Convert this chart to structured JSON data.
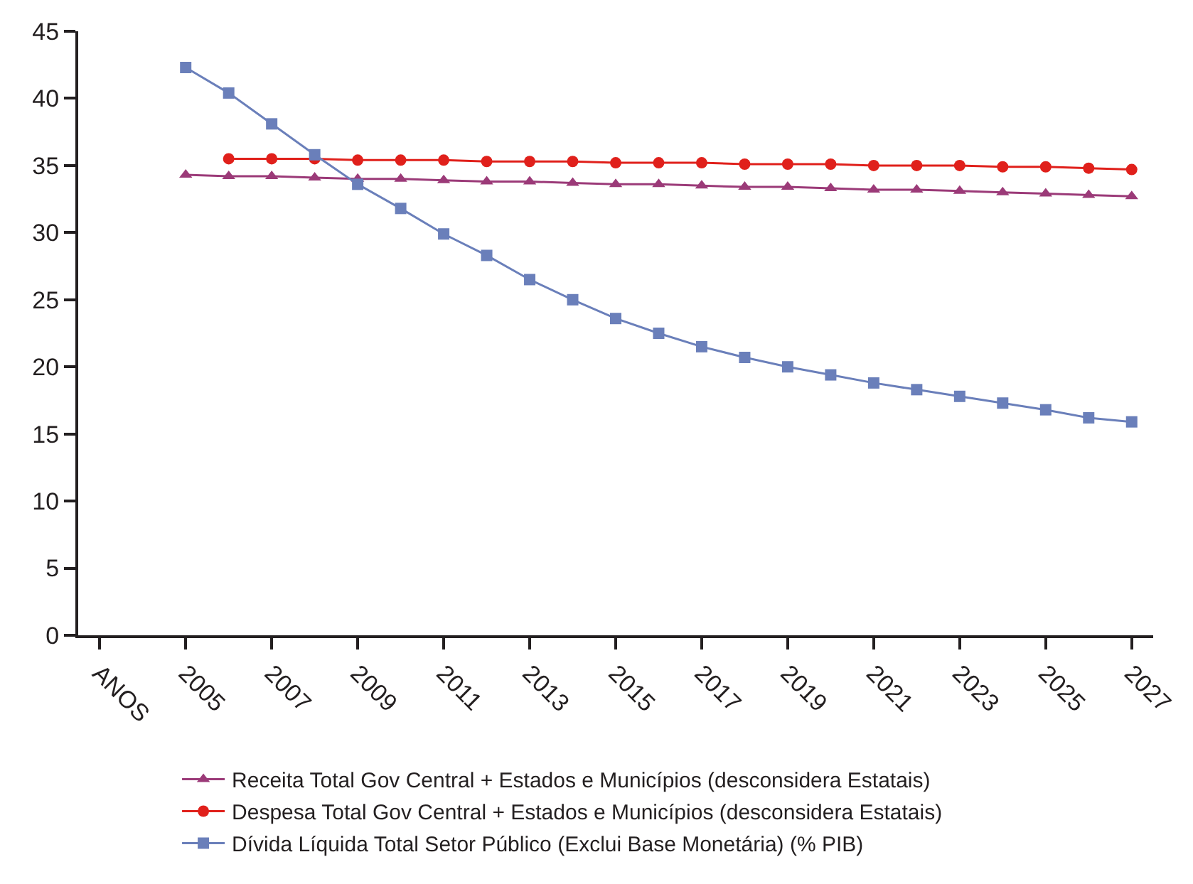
{
  "chart_data": {
    "type": "line",
    "categories": [
      "ANOS",
      null,
      "2005",
      null,
      "2007",
      null,
      "2009",
      null,
      "2011",
      null,
      "2013",
      null,
      "2015",
      null,
      "2017",
      null,
      "2019",
      null,
      "2021",
      null,
      "2023",
      null,
      "2025",
      null,
      "2027"
    ],
    "series": [
      {
        "name": "Receita Total Gov Central + Estados e Municípios (desconsidera Estatais)",
        "color": "#9b3a78",
        "marker": "triangle",
        "values": [
          null,
          null,
          34.3,
          34.2,
          34.2,
          34.1,
          34.0,
          34.0,
          33.9,
          33.8,
          33.8,
          33.7,
          33.6,
          33.6,
          33.5,
          33.4,
          33.4,
          33.3,
          33.2,
          33.2,
          33.1,
          33.0,
          32.9,
          32.8,
          32.7
        ]
      },
      {
        "name": "Despesa Total Gov Central + Estados e Municípios (desconsidera Estatais)",
        "color": "#e0201b",
        "marker": "circle",
        "values": [
          null,
          null,
          null,
          35.5,
          35.5,
          35.5,
          35.4,
          35.4,
          35.4,
          35.3,
          35.3,
          35.3,
          35.2,
          35.2,
          35.2,
          35.1,
          35.1,
          35.1,
          35.0,
          35.0,
          35.0,
          34.9,
          34.9,
          34.8,
          34.7
        ]
      },
      {
        "name": "Dívida Líquida Total Setor Público (Exclui Base Monetária) (% PIB)",
        "color": "#6a7fba",
        "marker": "square",
        "values": [
          null,
          null,
          42.3,
          40.4,
          38.1,
          35.8,
          33.6,
          31.8,
          29.9,
          28.3,
          26.5,
          25.0,
          23.6,
          22.5,
          21.5,
          20.7,
          20.0,
          19.4,
          18.8,
          18.3,
          17.8,
          17.3,
          16.8,
          16.2,
          15.9
        ]
      }
    ],
    "ylim": [
      0,
      45
    ],
    "yticks": [
      0,
      5,
      10,
      15,
      20,
      25,
      30,
      35,
      40,
      45
    ],
    "legend": "bottom",
    "line_style": "solid"
  }
}
